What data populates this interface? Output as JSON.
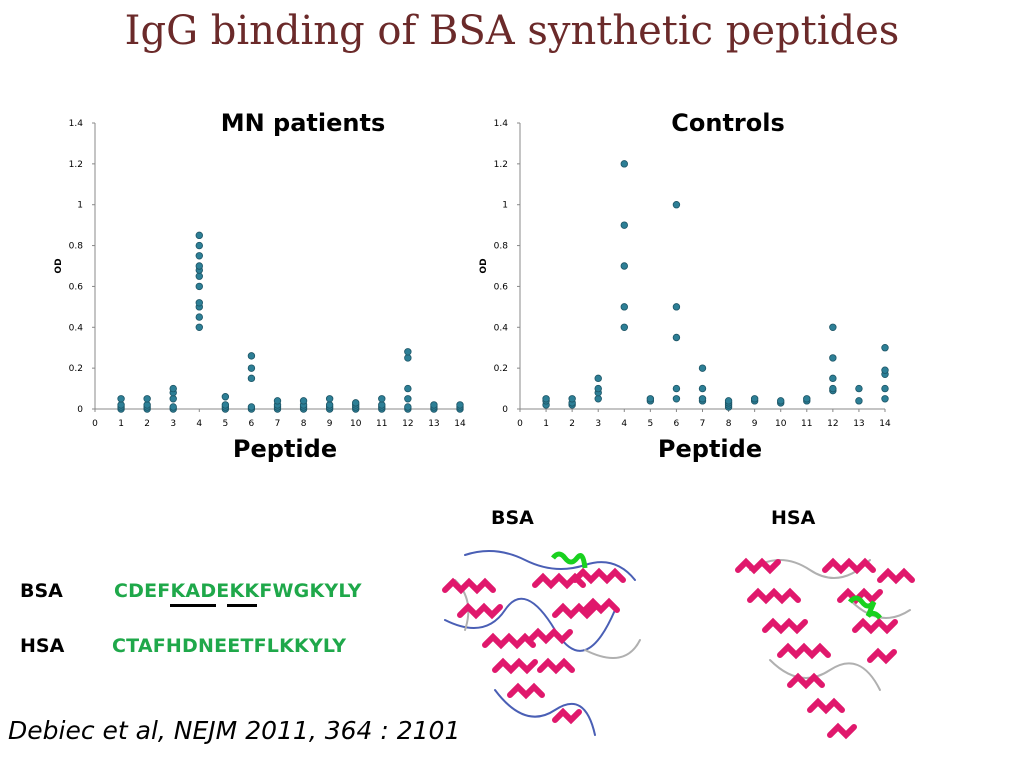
{
  "slide": {
    "title": "IgG binding of BSA synthetic peptides"
  },
  "chart_data": [
    {
      "type": "scatter",
      "title": "MN patients",
      "xlabel": "Peptide",
      "ylabel": "OD",
      "xlim": [
        0,
        14
      ],
      "ylim": [
        0,
        1.4
      ],
      "xticks": [
        0,
        1,
        2,
        3,
        4,
        5,
        6,
        7,
        8,
        9,
        10,
        11,
        12,
        13,
        14
      ],
      "yticks": [
        0,
        0.2,
        0.4,
        0.6,
        0.8,
        1,
        1.2,
        1.4
      ],
      "marker_color": "#2d7f96",
      "points": [
        [
          1,
          0.0
        ],
        [
          1,
          0.01
        ],
        [
          1,
          0.02
        ],
        [
          1,
          0.05
        ],
        [
          2,
          0.0
        ],
        [
          2,
          0.01
        ],
        [
          2,
          0.02
        ],
        [
          2,
          0.05
        ],
        [
          3,
          0.0
        ],
        [
          3,
          0.01
        ],
        [
          3,
          0.05
        ],
        [
          3,
          0.08
        ],
        [
          3,
          0.1
        ],
        [
          4,
          0.4
        ],
        [
          4,
          0.45
        ],
        [
          4,
          0.5
        ],
        [
          4,
          0.52
        ],
        [
          4,
          0.6
        ],
        [
          4,
          0.65
        ],
        [
          4,
          0.68
        ],
        [
          4,
          0.7
        ],
        [
          4,
          0.75
        ],
        [
          4,
          0.8
        ],
        [
          4,
          0.85
        ],
        [
          5,
          0.0
        ],
        [
          5,
          0.01
        ],
        [
          5,
          0.02
        ],
        [
          5,
          0.06
        ],
        [
          6,
          0.0
        ],
        [
          6,
          0.01
        ],
        [
          6,
          0.15
        ],
        [
          6,
          0.2
        ],
        [
          6,
          0.26
        ],
        [
          7,
          0.0
        ],
        [
          7,
          0.01
        ],
        [
          7,
          0.02
        ],
        [
          7,
          0.04
        ],
        [
          8,
          0.0
        ],
        [
          8,
          0.01
        ],
        [
          8,
          0.02
        ],
        [
          8,
          0.04
        ],
        [
          9,
          0.0
        ],
        [
          9,
          0.01
        ],
        [
          9,
          0.02
        ],
        [
          9,
          0.05
        ],
        [
          10,
          0.0
        ],
        [
          10,
          0.01
        ],
        [
          10,
          0.02
        ],
        [
          10,
          0.03
        ],
        [
          11,
          0.0
        ],
        [
          11,
          0.01
        ],
        [
          11,
          0.02
        ],
        [
          11,
          0.05
        ],
        [
          12,
          0.0
        ],
        [
          12,
          0.01
        ],
        [
          12,
          0.05
        ],
        [
          12,
          0.1
        ],
        [
          12,
          0.25
        ],
        [
          12,
          0.28
        ],
        [
          13,
          0.0
        ],
        [
          13,
          0.01
        ],
        [
          13,
          0.02
        ],
        [
          14,
          0.0
        ],
        [
          14,
          0.01
        ],
        [
          14,
          0.02
        ]
      ]
    },
    {
      "type": "scatter",
      "title": "Controls",
      "xlabel": "Peptide",
      "ylabel": "OD",
      "xlim": [
        0,
        14
      ],
      "ylim": [
        0,
        1.4
      ],
      "xticks": [
        0,
        1,
        2,
        3,
        4,
        5,
        6,
        7,
        8,
        9,
        10,
        11,
        12,
        13,
        14
      ],
      "yticks": [
        0,
        0.2,
        0.4,
        0.6,
        0.8,
        1,
        1.2,
        1.4
      ],
      "marker_color": "#2d7f96",
      "points": [
        [
          1,
          0.02
        ],
        [
          1,
          0.04
        ],
        [
          1,
          0.05
        ],
        [
          2,
          0.02
        ],
        [
          2,
          0.03
        ],
        [
          2,
          0.05
        ],
        [
          3,
          0.05
        ],
        [
          3,
          0.08
        ],
        [
          3,
          0.1
        ],
        [
          3,
          0.15
        ],
        [
          4,
          0.4
        ],
        [
          4,
          0.5
        ],
        [
          4,
          0.7
        ],
        [
          4,
          0.9
        ],
        [
          4,
          1.2
        ],
        [
          5,
          0.04
        ],
        [
          5,
          0.05
        ],
        [
          6,
          0.05
        ],
        [
          6,
          0.1
        ],
        [
          6,
          0.35
        ],
        [
          6,
          0.5
        ],
        [
          6,
          1.0
        ],
        [
          7,
          0.04
        ],
        [
          7,
          0.05
        ],
        [
          7,
          0.1
        ],
        [
          7,
          0.2
        ],
        [
          8,
          0.01
        ],
        [
          8,
          0.02
        ],
        [
          8,
          0.03
        ],
        [
          8,
          0.04
        ],
        [
          9,
          0.04
        ],
        [
          9,
          0.05
        ],
        [
          10,
          0.03
        ],
        [
          10,
          0.04
        ],
        [
          11,
          0.04
        ],
        [
          11,
          0.05
        ],
        [
          12,
          0.09
        ],
        [
          12,
          0.1
        ],
        [
          12,
          0.15
        ],
        [
          12,
          0.25
        ],
        [
          12,
          0.4
        ],
        [
          13,
          0.04
        ],
        [
          13,
          0.1
        ],
        [
          14,
          0.05
        ],
        [
          14,
          0.1
        ],
        [
          14,
          0.17
        ],
        [
          14,
          0.19
        ],
        [
          14,
          0.3
        ]
      ]
    }
  ],
  "sequences": {
    "bsa": {
      "label": "BSA",
      "seq_before": "CDEF",
      "seq_ka": "KA",
      "seq_d": "D",
      "seq_e": "E",
      "seq_after": "KKFWGKYLY"
    },
    "hsa": {
      "label": "HSA",
      "seq": "CTAFHDNEETFLKKYLY"
    },
    "color": "#1fa84a"
  },
  "structures": {
    "bsa_label": "BSA",
    "hsa_label": "HSA",
    "helix_color": "#e0186c",
    "coil_color": "#4a5fb5",
    "epitope_color": "#19d11f"
  },
  "citation": "Debiec et al, NEJM 2011, 364 : 2101"
}
